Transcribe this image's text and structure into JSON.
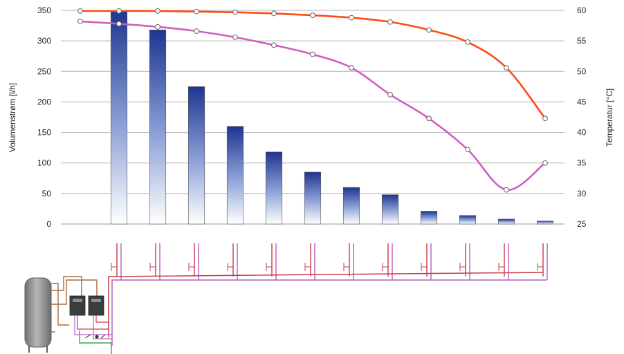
{
  "chart_data": {
    "type": "bar",
    "title": "",
    "xlabel": "",
    "ylabel": "Volumenstrøm [l/h]",
    "ylabel_right": "Temperatur [°C]",
    "ylim": [
      0,
      350
    ],
    "yticks": [
      0,
      50,
      100,
      150,
      200,
      250,
      300,
      350
    ],
    "ylim_right": [
      25,
      60
    ],
    "yticks_right": [
      25,
      30,
      35,
      40,
      45,
      50,
      55,
      60
    ],
    "grid": true,
    "legend": "none",
    "x": [
      0,
      1,
      2,
      3,
      4,
      5,
      6,
      7,
      8,
      9,
      10,
      11,
      12
    ],
    "series": [
      {
        "kind": "bar",
        "axis": "left",
        "color": "#2a3f9e",
        "values": [
          null,
          350,
          318,
          225,
          160,
          118,
          85,
          60,
          48,
          21,
          14,
          8,
          5
        ]
      },
      {
        "kind": "line",
        "axis": "right",
        "color": "#ff4a10",
        "values": [
          59.9,
          59.9,
          59.9,
          59.8,
          59.7,
          59.5,
          59.2,
          58.8,
          58.1,
          56.8,
          54.8,
          50.6,
          42.3
        ]
      },
      {
        "kind": "line",
        "axis": "right",
        "color": "#d05cc0",
        "values": [
          58.2,
          57.8,
          57.3,
          56.6,
          55.6,
          54.3,
          52.8,
          50.6,
          46.2,
          42.3,
          37.2,
          30.6,
          35.0
        ]
      }
    ]
  },
  "schematic": {
    "supply_color": "#c83a4a",
    "return_color": "#b060c0",
    "feed_color": "#a86a3a",
    "cold_color": "#3aa84a",
    "tank_color": "#8c8f8c",
    "unit_color": "#3a3d3d",
    "branch_count": 12
  }
}
